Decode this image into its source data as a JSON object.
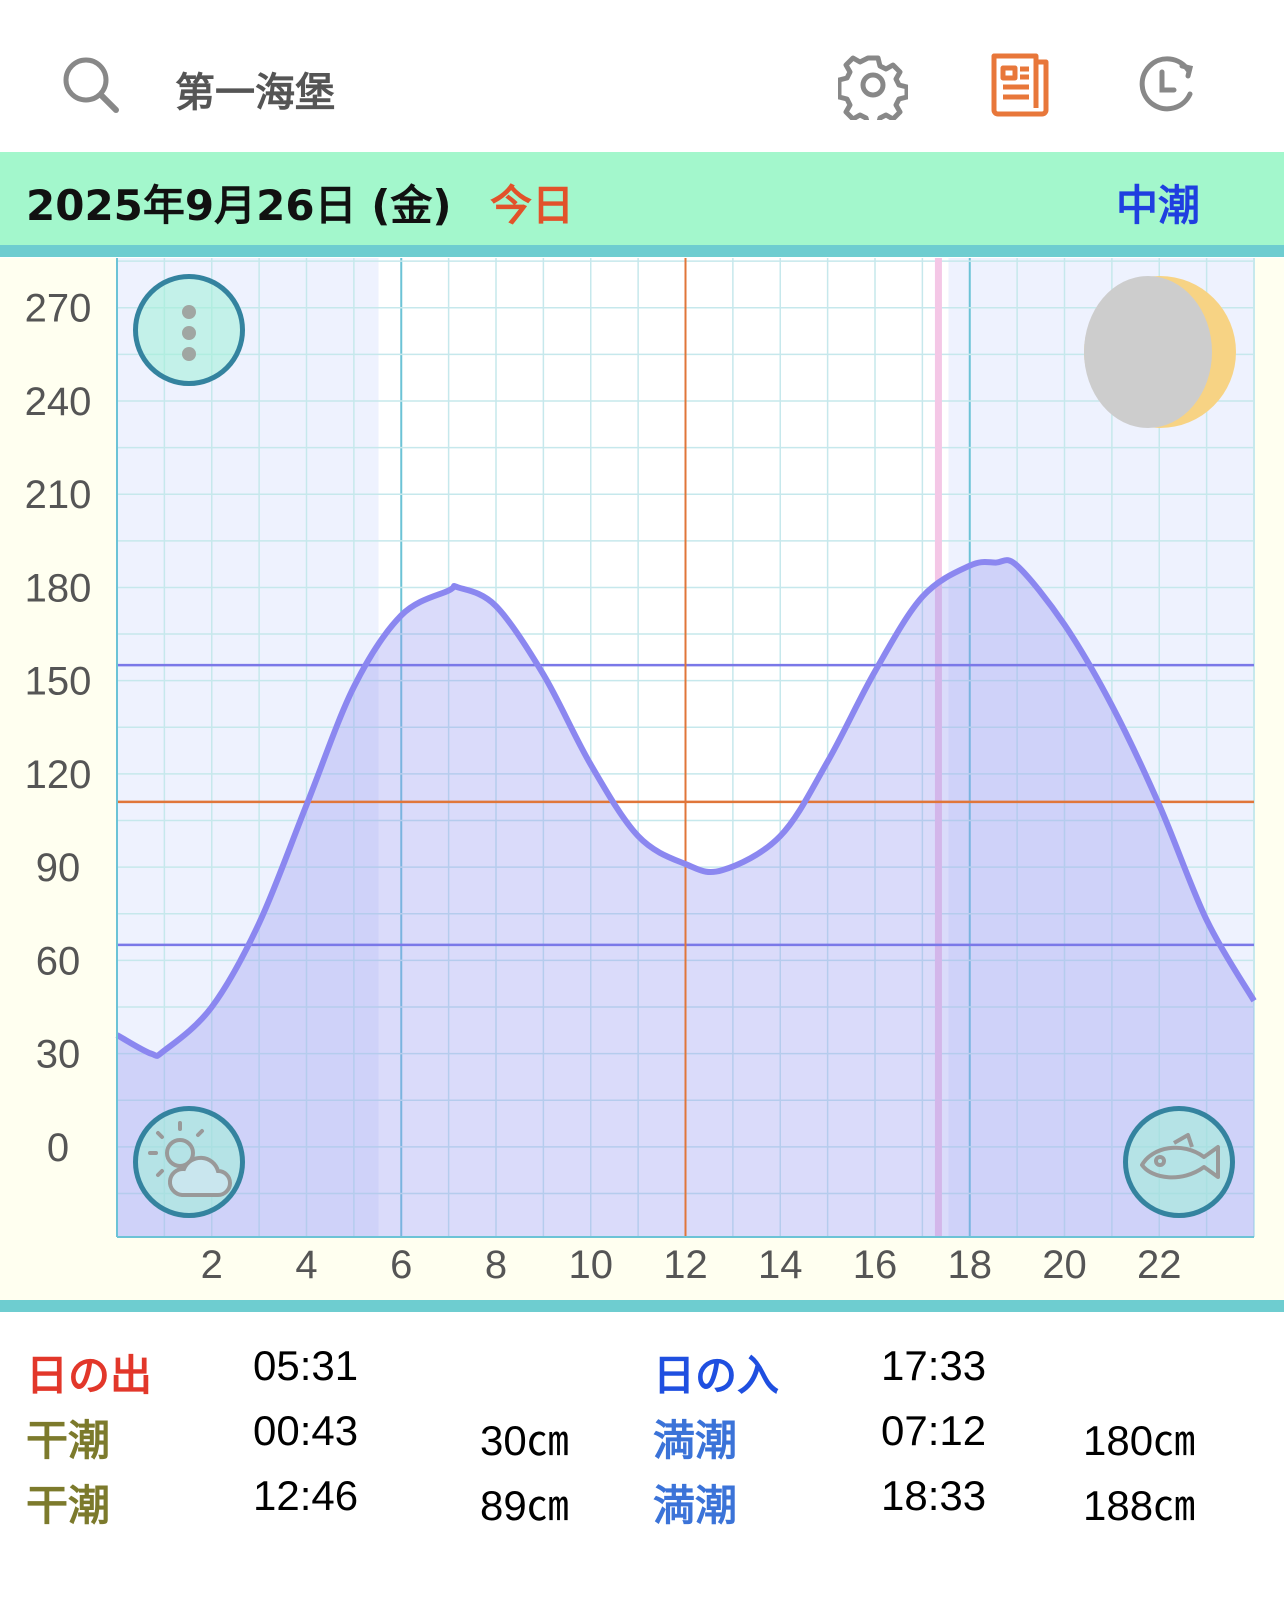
{
  "header": {
    "title": "第一海堡",
    "icons": [
      "search-icon",
      "gear-icon",
      "newspaper-icon",
      "history-clock-icon"
    ],
    "accent": "#e8773a"
  },
  "dateband": {
    "date": "2025年9月26日 (金)",
    "today": "今日",
    "tide_name": "中潮",
    "bg": "#a3f7cc"
  },
  "chart_data": {
    "type": "area",
    "title": "",
    "xlabel": "",
    "ylabel": "",
    "xlim": [
      0,
      24
    ],
    "ylim": [
      -29,
      286
    ],
    "xticks": [
      2,
      4,
      6,
      8,
      10,
      12,
      14,
      16,
      18,
      20,
      22
    ],
    "yticks": [
      270,
      240,
      210,
      180,
      150,
      120,
      90,
      60,
      30,
      0
    ],
    "grid": true,
    "x": [
      0,
      0.72,
      1,
      2,
      3,
      4,
      5,
      6,
      7,
      7.2,
      8,
      9,
      10,
      11,
      12,
      12.77,
      14,
      15,
      16,
      17,
      18,
      18.55,
      19,
      20,
      21,
      22,
      23,
      24
    ],
    "y": [
      36,
      30,
      31,
      45,
      72,
      110,
      148,
      171,
      179,
      180,
      174,
      152,
      123,
      100,
      91,
      89,
      100,
      124,
      153,
      177,
      187,
      188,
      187,
      168,
      142,
      110,
      73,
      47
    ],
    "reference_lines": {
      "upper_level": 155,
      "current_level": 111,
      "lower_level": 65,
      "current_hour": 12
    },
    "sunrise_hour": 5.52,
    "sunset_hour": 17.55,
    "colors": {
      "curve": "#8b87f0",
      "fill": "#c3c6f7",
      "night": "#eef2fe",
      "current": "#e0763a",
      "levels": "#7a78e8",
      "sunset_line": "#f4c7e6"
    }
  },
  "chart_buttons": {
    "menu": "more-vertical-icon",
    "weather": "weather-icon",
    "fish": "fish-icon",
    "moon": "moon-waxing-crescent-icon"
  },
  "table": {
    "sunrise": {
      "label": "日の出",
      "time": "05:31"
    },
    "sunset": {
      "label": "日の入",
      "time": "17:33"
    },
    "low1": {
      "label": "干潮",
      "time": "00:43",
      "height": "30㎝"
    },
    "high1": {
      "label": "満潮",
      "time": "07:12",
      "height": "180㎝"
    },
    "low2": {
      "label": "干潮",
      "time": "12:46",
      "height": "89㎝"
    },
    "high2": {
      "label": "満潮",
      "time": "18:33",
      "height": "188㎝"
    }
  }
}
